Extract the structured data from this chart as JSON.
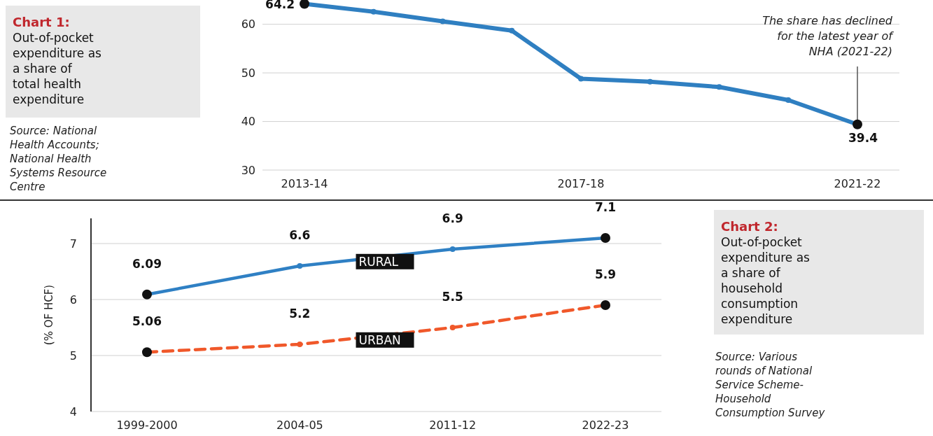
{
  "chart_data": [
    {
      "type": "line",
      "categories": [
        "2013-14",
        null,
        null,
        null,
        "2017-18",
        null,
        null,
        null,
        "2021-22"
      ],
      "series": [
        {
          "color": "#2f7fc1",
          "values": [
            64.2,
            62.6,
            60.6,
            58.7,
            48.8,
            48.2,
            47.1,
            44.4,
            39.4
          ],
          "value_labels": [
            "64.2",
            null,
            null,
            null,
            null,
            null,
            null,
            null,
            "39.4"
          ]
        }
      ],
      "ylim": [
        30,
        65
      ],
      "yticks": [
        30,
        40,
        50,
        60
      ],
      "grid": "y",
      "marker": "circle",
      "line_style": "solid",
      "annotations": [
        "Chart 1:",
        "Out-of-pocket expenditure as a share of total health expenditure",
        {
          "text": "The share has declined for the latest year of NHA (2021-22)",
          "x": "2021-22",
          "y": 39.4
        },
        "Source: National Health Accounts; National Health Systems Resource Centre"
      ]
    },
    {
      "type": "line",
      "ylabel": "(% OF HCF)",
      "categories": [
        "1999-2000",
        "2004-05",
        "2011-12",
        "2022-23"
      ],
      "series": [
        {
          "name": "RURAL",
          "color": "#2f80c4",
          "values": [
            6.09,
            6.6,
            6.9,
            7.1
          ],
          "line_style": "solid"
        },
        {
          "name": "URBAN",
          "color": "#f0582a",
          "values": [
            5.06,
            5.2,
            5.5,
            5.9
          ],
          "line_style": "dashed"
        }
      ],
      "ylim": [
        4,
        7.45
      ],
      "yticks": [
        4,
        5,
        6,
        7
      ],
      "grid": "y",
      "marker": "circle",
      "data_labels": true,
      "annotations": [
        "Chart 2:",
        "Out-of-pocket expenditure as a share of household consumption expenditure",
        "Source: Various rounds of National Service Scheme-Household Consumption Survey"
      ]
    }
  ]
}
